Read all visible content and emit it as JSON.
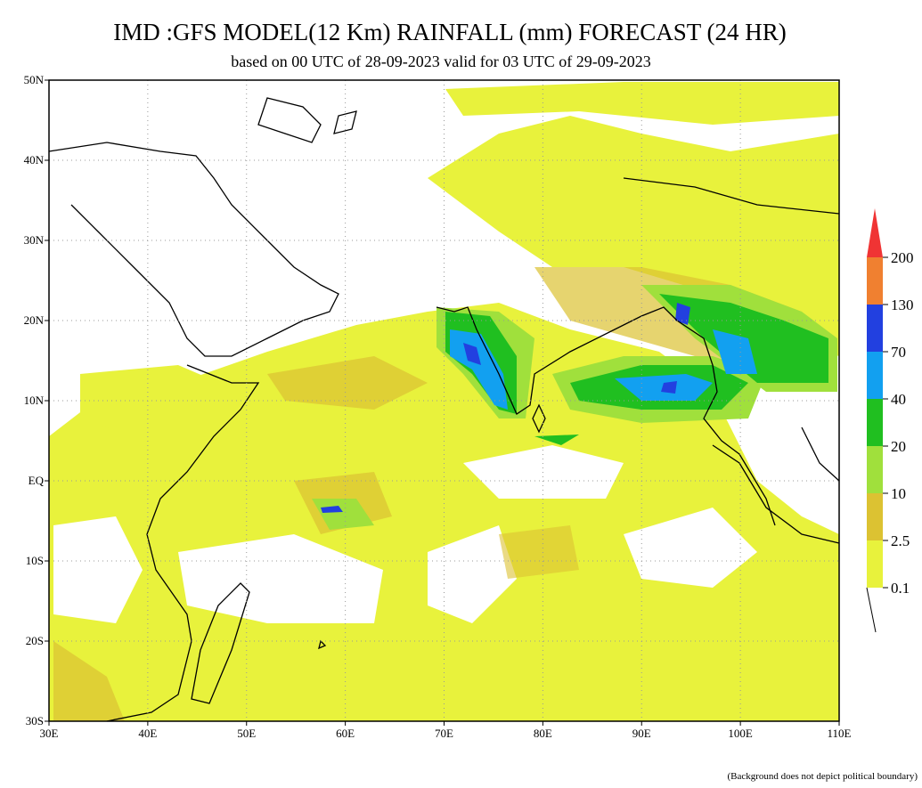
{
  "title": "IMD :GFS MODEL(12 Km) RAINFALL (mm) FORECAST (24 HR)",
  "subtitle": "based on 00 UTC of 28-09-2023 valid for 03 UTC of 29-09-2023",
  "map": {
    "xlim": [
      30,
      110
    ],
    "ylim": [
      -30,
      50
    ],
    "xticks": [
      {
        "value": 30,
        "label": "30E"
      },
      {
        "value": 40,
        "label": "40E"
      },
      {
        "value": 50,
        "label": "50E"
      },
      {
        "value": 60,
        "label": "60E"
      },
      {
        "value": 70,
        "label": "70E"
      },
      {
        "value": 80,
        "label": "80E"
      },
      {
        "value": 90,
        "label": "90E"
      },
      {
        "value": 100,
        "label": "100E"
      },
      {
        "value": 110,
        "label": "110E"
      }
    ],
    "yticks": [
      {
        "value": 50,
        "label": "50N"
      },
      {
        "value": 40,
        "label": "40N"
      },
      {
        "value": 30,
        "label": "30N"
      },
      {
        "value": 20,
        "label": "20N"
      },
      {
        "value": 10,
        "label": "10N"
      },
      {
        "value": 0,
        "label": "EQ"
      },
      {
        "value": -10,
        "label": "10S"
      },
      {
        "value": -20,
        "label": "20S"
      },
      {
        "value": -30,
        "label": "30S"
      }
    ],
    "grid": true
  },
  "colorbar": {
    "levels": [
      0.1,
      2.5,
      10,
      20,
      40,
      70,
      130,
      200
    ],
    "colors": [
      "#e8f23c",
      "#dcc232",
      "#a0e03c",
      "#20bf20",
      "#12a0f0",
      "#2240e0",
      "#f08030",
      "#f03434"
    ]
  },
  "footnote": "(Background does not depict political boundary)"
}
